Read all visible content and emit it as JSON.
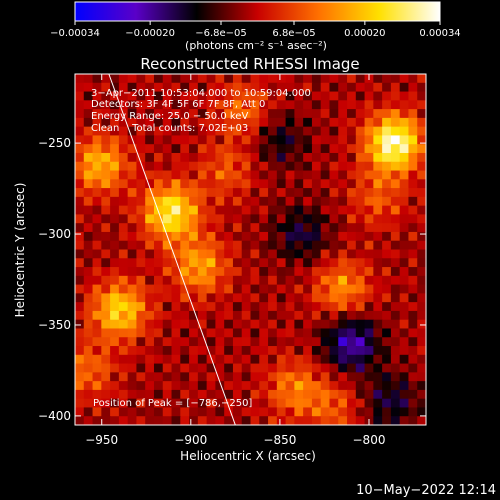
{
  "chart_data": {
    "type": "heatmap",
    "title": "Reconstructed RHESSI Image",
    "xlabel": "Heliocentric X (arcsec)",
    "ylabel": "Heliocentric Y (arcsec)",
    "xlim": [
      -965,
      -768
    ],
    "ylim": [
      -405,
      -212
    ],
    "x_ticks": [
      -950,
      -900,
      -850,
      -800
    ],
    "x_tick_labels": [
      "−950",
      "−900",
      "−850",
      "−800"
    ],
    "y_ticks": [
      -250,
      -300,
      -350,
      -400
    ],
    "y_tick_labels": [
      "−250",
      "−300",
      "−350",
      "−400"
    ],
    "colorbar": {
      "min": -0.00034,
      "max": 0.00034,
      "tick_values": [
        -0.00034,
        -0.0002,
        -6.8e-05,
        6.8e-05,
        0.0002,
        0.00034
      ],
      "tick_labels": [
        "−0.00034",
        "−0.00020",
        "−6.8e−05",
        "6.8e−05",
        "0.00020",
        "0.00034"
      ],
      "unit_label": "(photons cm⁻² s⁻¹ asec⁻²)",
      "colors": [
        "#0000ff",
        "#5a00c8",
        "#000000",
        "#c80000",
        "#ff7000",
        "#ffe000",
        "#ffffff"
      ]
    },
    "annotations": [
      "3−Apr−2011 10:53:04.000 to 10:59:04.000",
      "Detectors: 3F 4F 5F 6F 7F 8F, Att 0",
      "Energy Range: 25.0 − 50.0 keV",
      "Clean    Total counts: 7.02E+03"
    ],
    "peak_label": "Position of Peak = [−786,−250]",
    "peak": [
      -786,
      -250
    ],
    "limb_line": [
      [
        -946,
        -212
      ],
      [
        -875,
        -405
      ]
    ],
    "sources": [
      {
        "x": -786,
        "y": -250,
        "value": 0.00034
      },
      {
        "x": -911,
        "y": -288,
        "value": 0.00028
      },
      {
        "x": -940,
        "y": -342,
        "value": 0.00024
      },
      {
        "x": -951,
        "y": -262,
        "value": 0.0002
      },
      {
        "x": -895,
        "y": -318,
        "value": 0.00018
      },
      {
        "x": -815,
        "y": -330,
        "value": 0.00016
      },
      {
        "x": -842,
        "y": -385,
        "value": 0.00014
      },
      {
        "x": -958,
        "y": -375,
        "value": 0.00012
      },
      {
        "x": -870,
        "y": -232,
        "value": 0.00012
      },
      {
        "x": -795,
        "y": -280,
        "value": 0.0001
      },
      {
        "x": -880,
        "y": -265,
        "value": 0.0001
      },
      {
        "x": -820,
        "y": -395,
        "value": 0.0001
      },
      {
        "x": -810,
        "y": -360,
        "value": -0.0002
      },
      {
        "x": -838,
        "y": -300,
        "value": -0.00012
      },
      {
        "x": -850,
        "y": -248,
        "value": -0.0001
      },
      {
        "x": -788,
        "y": -392,
        "value": -0.00012
      }
    ]
  },
  "footer": {
    "timestamp": "10−May−2022 12:14"
  }
}
